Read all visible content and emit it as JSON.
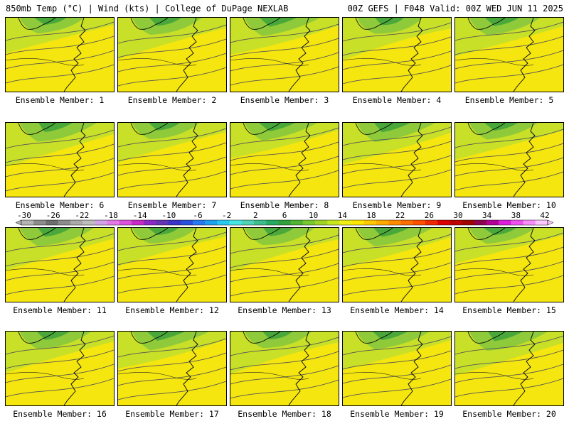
{
  "header": {
    "left": "850mb Temp (°C) | Wind (kts) | College of DuPage NEXLAB",
    "right": "00Z GEFS | F048 Valid: 00Z WED JUN 11 2025"
  },
  "panels": [
    {
      "label": "Ensemble Member: 1"
    },
    {
      "label": "Ensemble Member: 2"
    },
    {
      "label": "Ensemble Member: 3"
    },
    {
      "label": "Ensemble Member: 4"
    },
    {
      "label": "Ensemble Member: 5"
    },
    {
      "label": "Ensemble Member: 6"
    },
    {
      "label": "Ensemble Member: 7"
    },
    {
      "label": "Ensemble Member: 8"
    },
    {
      "label": "Ensemble Member: 9"
    },
    {
      "label": "Ensemble Member: 10"
    },
    {
      "label": "Ensemble Member: 11"
    },
    {
      "label": "Ensemble Member: 12"
    },
    {
      "label": "Ensemble Member: 13"
    },
    {
      "label": "Ensemble Member: 14"
    },
    {
      "label": "Ensemble Member: 15"
    },
    {
      "label": "Ensemble Member: 16"
    },
    {
      "label": "Ensemble Member: 17"
    },
    {
      "label": "Ensemble Member: 18"
    },
    {
      "label": "Ensemble Member: 19"
    },
    {
      "label": "Ensemble Member: 20"
    }
  ],
  "colorbar": {
    "ticks": [
      "-30",
      "-26",
      "-22",
      "-18",
      "-14",
      "-10",
      "-6",
      "-2",
      "2",
      "6",
      "10",
      "14",
      "18",
      "22",
      "26",
      "30",
      "34",
      "38",
      "42"
    ],
    "colors": [
      "#b4b4b4",
      "#8c8c8c",
      "#6e6e6e",
      "#8c8c8c",
      "#aaaaaa",
      "#bebebe",
      "#d2a0e6",
      "#e678e6",
      "#dc50dc",
      "#c828c8",
      "#8c28c8",
      "#6432b4",
      "#3c32c8",
      "#2850dc",
      "#2878f0",
      "#1ea0f0",
      "#28c8f0",
      "#46e6e6",
      "#50d2b4",
      "#3cbe8c",
      "#28aa64",
      "#32a03c",
      "#50b432",
      "#78c832",
      "#a0d228",
      "#c8e61e",
      "#f0f014",
      "#ffe600",
      "#ffc800",
      "#ffaa00",
      "#ff8c00",
      "#ff6e00",
      "#ff5000",
      "#f02800",
      "#dc0000",
      "#be0000",
      "#a00000",
      "#8c0050",
      "#b40096",
      "#dc1edc",
      "#f050f0",
      "#fa8cfa",
      "#ffc8ff"
    ]
  }
}
